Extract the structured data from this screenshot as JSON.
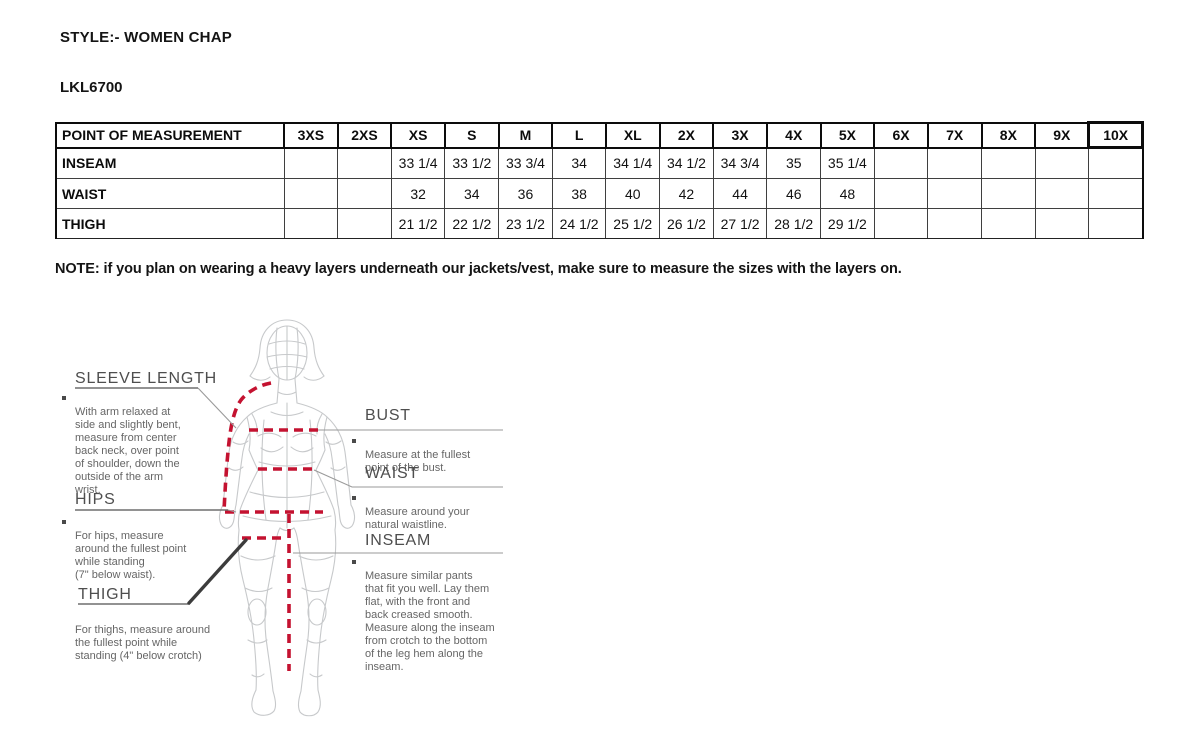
{
  "document": {
    "style_label": "STYLE:- WOMEN CHAP",
    "style_code": "LKL6700",
    "note": "NOTE: if you plan on wearing a heavy layers underneath our jackets/vest, make sure to measure the sizes with the layers on."
  },
  "size_table": {
    "header": [
      "POINT OF MEASUREMENT",
      "3XS",
      "2XS",
      "XS",
      "S",
      "M",
      "L",
      "XL",
      "2X",
      "3X",
      "4X",
      "5X",
      "6X",
      "7X",
      "8X",
      "9X",
      "10X"
    ],
    "rows": [
      {
        "label": "INSEAM",
        "values": [
          "",
          "",
          "33 1/4",
          "33 1/2",
          "33 3/4",
          "34",
          "34 1/4",
          "34 1/2",
          "34 3/4",
          "35",
          "35 1/4",
          "",
          "",
          "",
          "",
          ""
        ]
      },
      {
        "label": "WAIST",
        "values": [
          "",
          "",
          "32",
          "34",
          "36",
          "38",
          "40",
          "42",
          "44",
          "46",
          "48",
          "",
          "",
          "",
          "",
          ""
        ]
      },
      {
        "label": "THIGH",
        "values": [
          "",
          "",
          "21 1/2",
          "22 1/2",
          "23 1/2",
          "24 1/2",
          "25 1/2",
          "26 1/2",
          "27 1/2",
          "28 1/2",
          "29 1/2",
          "",
          "",
          "",
          "",
          ""
        ]
      }
    ]
  },
  "diagram": {
    "figure": "woman-body-wireframe",
    "sections": {
      "sleeve_length": {
        "title": "SLEEVE LENGTH",
        "desc": "With arm relaxed at\nside and slightly bent,\nmeasure from center\nback neck, over point\nof shoulder, down the\noutside of the arm\nwrist."
      },
      "hips": {
        "title": "HIPS",
        "desc": "For hips, measure\naround the fullest point\nwhile standing\n(7\" below waist)."
      },
      "thigh": {
        "title": "THIGH",
        "desc": "For thighs, measure around\nthe fullest point while\nstanding (4\" below crotch)"
      },
      "bust": {
        "title": "BUST",
        "desc": "Measure at the fullest\npoint of the bust."
      },
      "waist": {
        "title": "WAIST",
        "desc": "Measure around your\nnatural waistline."
      },
      "inseam": {
        "title": "INSEAM",
        "desc": "Measure similar pants\nthat fit you well. Lay them\nflat, with the front and\nback creased smooth.\nMeasure along the inseam\nfrom crotch to the bottom\nof the leg hem along the\ninseam."
      }
    },
    "colors": {
      "measurement_line": "#c41230",
      "body_outline": "#c7c9cb",
      "leader_line": "#9a9a9a",
      "underline": "#6e6e6e",
      "pointer_line": "#3c3c3c"
    }
  }
}
